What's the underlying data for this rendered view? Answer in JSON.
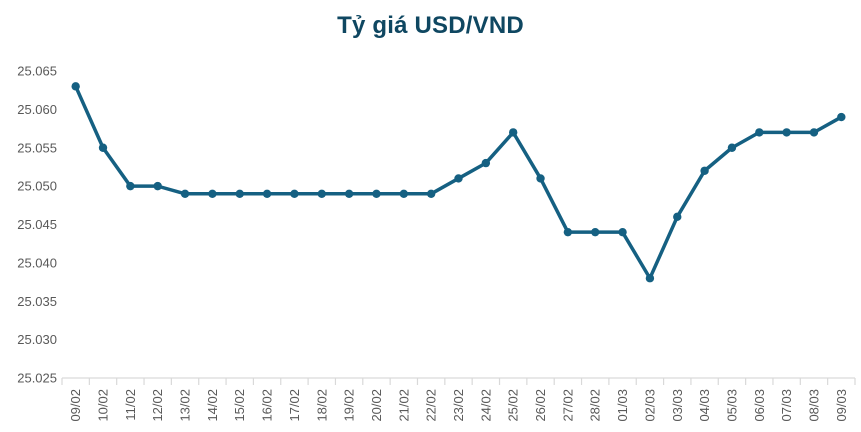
{
  "title": "Tỷ giá USD/VND",
  "colors": {
    "title": "#0F4761",
    "line": "#156082",
    "marker": "#156082",
    "axis_text": "#595959",
    "axis_line": "#D9D9D9",
    "background": "#FFFFFF"
  },
  "chart_data": {
    "type": "line",
    "title": "Tỷ giá USD/VND",
    "categories": [
      "09/02",
      "10/02",
      "11/02",
      "12/02",
      "13/02",
      "14/02",
      "15/02",
      "16/02",
      "17/02",
      "18/02",
      "19/02",
      "20/02",
      "21/02",
      "22/02",
      "23/02",
      "24/02",
      "25/02",
      "26/02",
      "27/02",
      "28/02",
      "01/03",
      "02/03",
      "03/03",
      "04/03",
      "05/03",
      "06/03",
      "07/03",
      "08/03",
      "09/03"
    ],
    "values": [
      25063,
      25055,
      25050,
      25050,
      25049,
      25049,
      25049,
      25049,
      25049,
      25049,
      25049,
      25049,
      25049,
      25049,
      25051,
      25053,
      25057,
      25051,
      25044,
      25044,
      25044,
      25038,
      25046,
      25052,
      25055,
      25057,
      25057,
      25057,
      25059
    ],
    "value_format": "vi-VN (dot as thousands separator)",
    "xlabel": "",
    "ylabel": "",
    "ylim": [
      25025,
      25065
    ],
    "ytick_step": 5,
    "ytick_labels": [
      "25.025",
      "25.030",
      "25.035",
      "25.040",
      "25.045",
      "25.050",
      "25.055",
      "25.060",
      "25.065"
    ],
    "grid": false,
    "legend": "none",
    "marker": "circle",
    "x_label_rotation": -90
  }
}
